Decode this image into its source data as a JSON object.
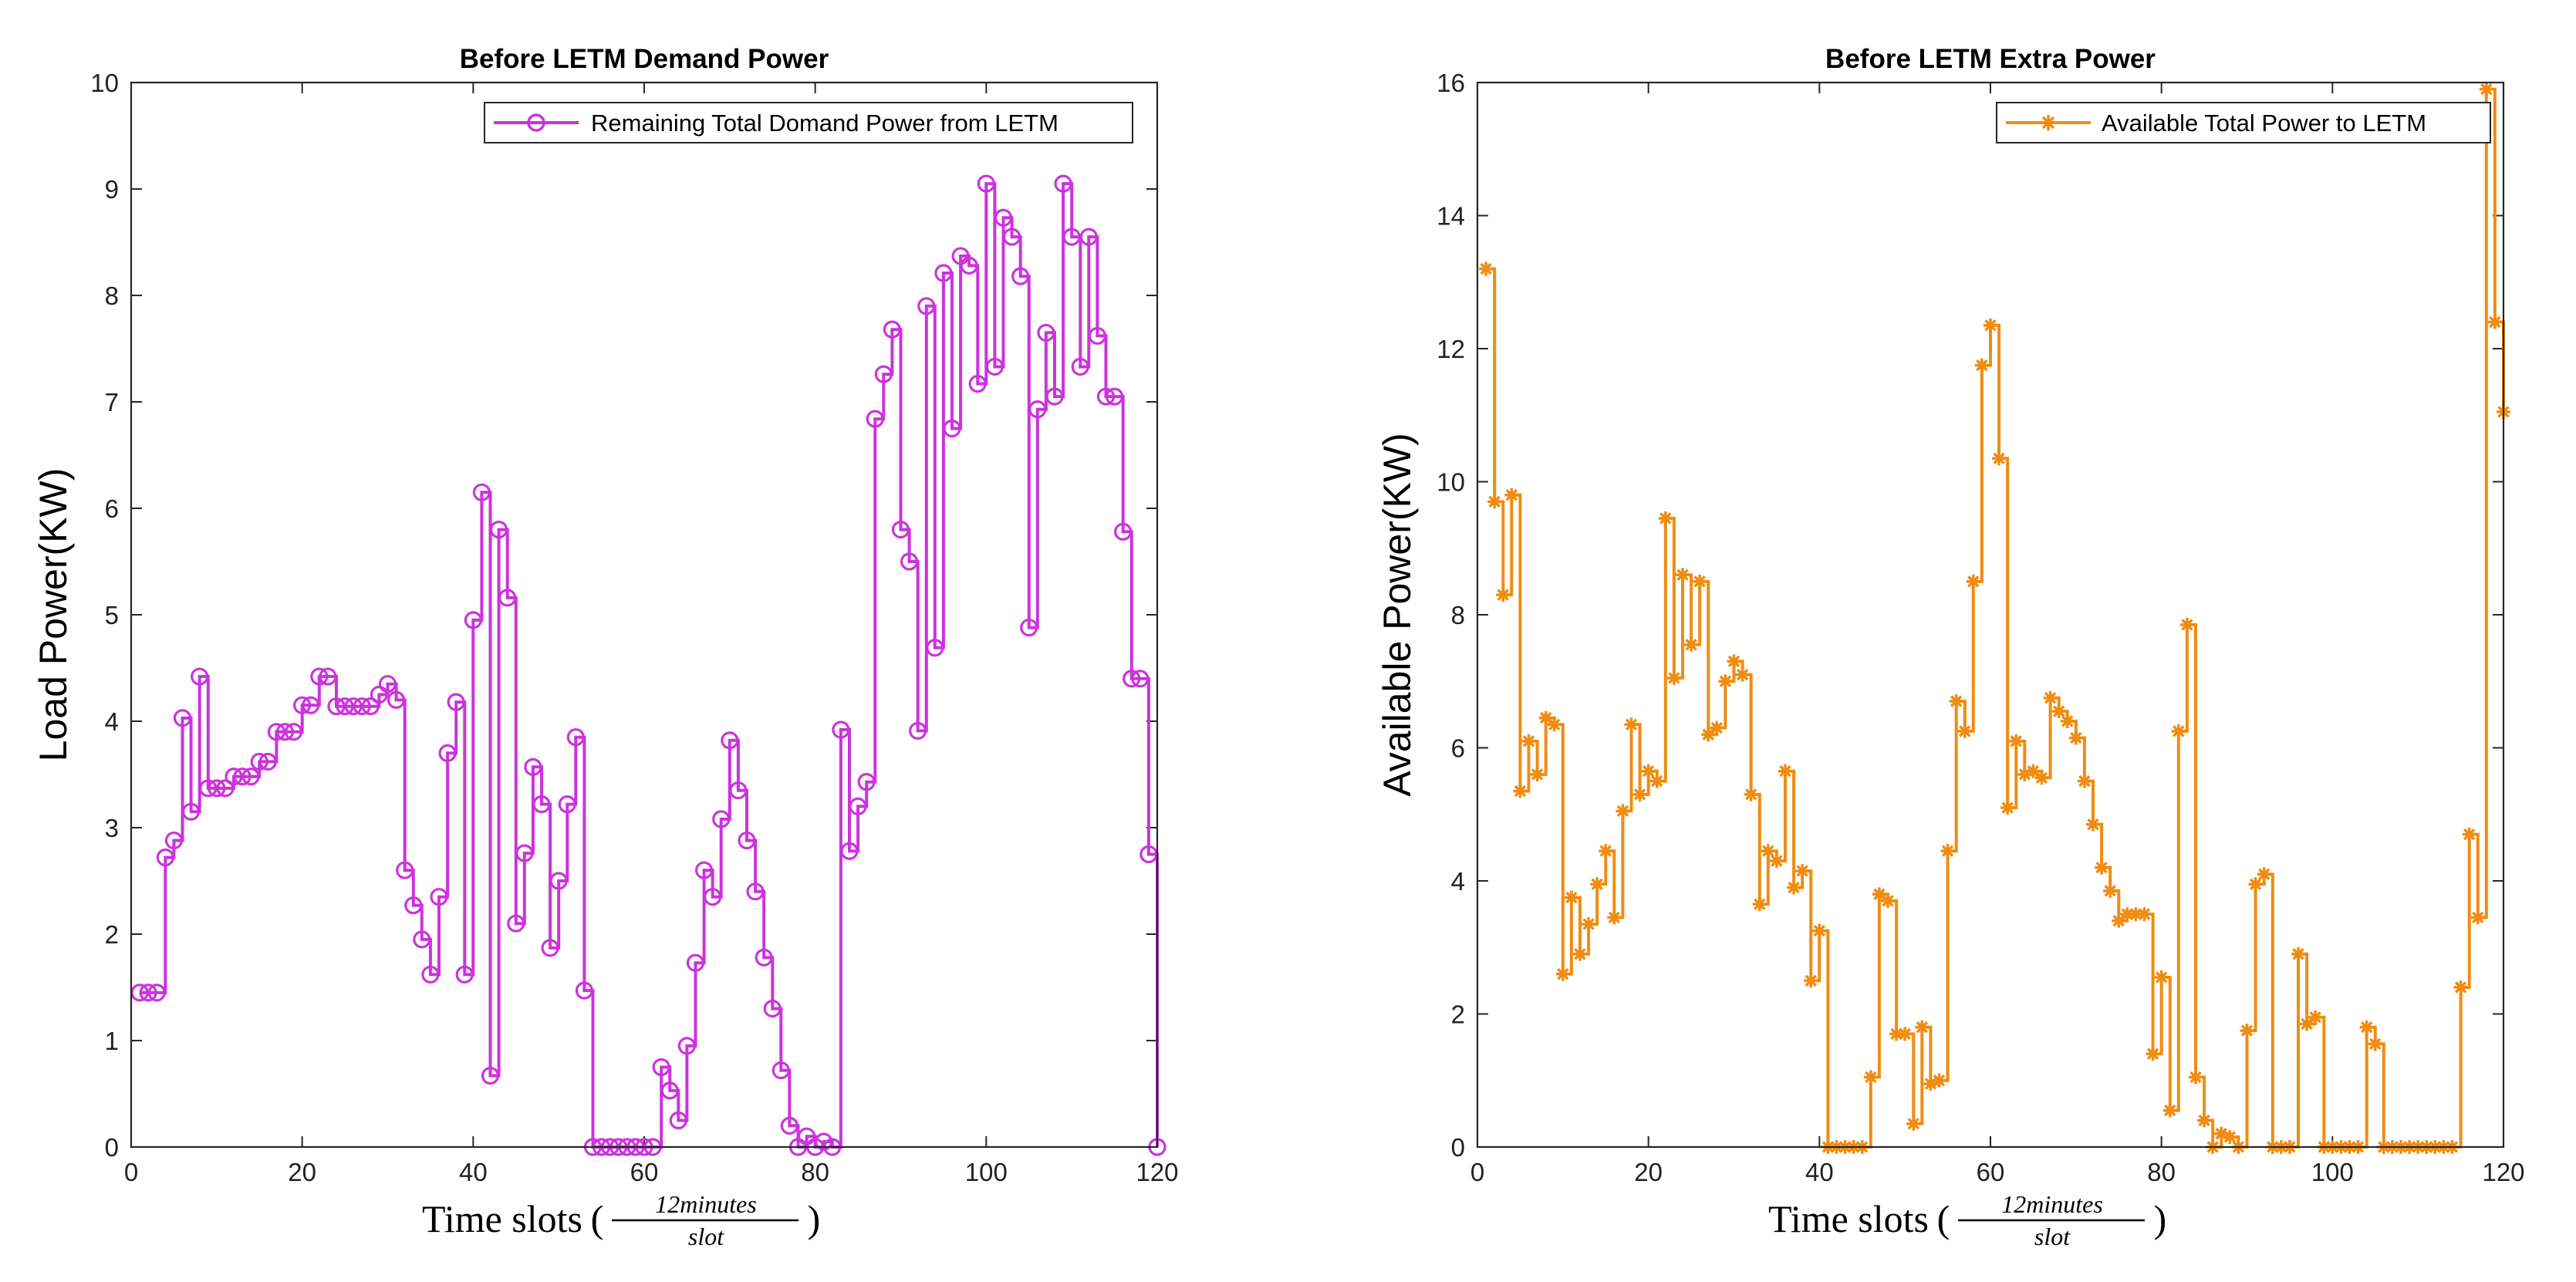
{
  "chart_data": [
    {
      "type": "line",
      "style": "stairs",
      "marker": "circle",
      "color": "#cc33dd",
      "title": "Before LETM Demand Power",
      "xlabel": "Time slots",
      "xlabel_frac_num": "12minutes",
      "xlabel_frac_den": "slot",
      "ylabel": "Load Power(KW)",
      "xlim": [
        0,
        120
      ],
      "ylim": [
        0,
        10
      ],
      "xticks": [
        0,
        20,
        40,
        60,
        80,
        100,
        120
      ],
      "yticks": [
        0,
        1,
        2,
        3,
        4,
        5,
        6,
        7,
        8,
        9,
        10
      ],
      "legend": "Remaining Total Domand Power from LETM",
      "legend_position": "top-right",
      "series": [
        {
          "name": "Remaining Total Domand Power from LETM",
          "x": [
            1,
            2,
            3,
            4,
            5,
            6,
            7,
            8,
            9,
            10,
            11,
            12,
            13,
            14,
            15,
            16,
            17,
            18,
            19,
            20,
            21,
            22,
            23,
            24,
            25,
            26,
            27,
            28,
            29,
            30,
            31,
            32,
            33,
            34,
            35,
            36,
            37,
            38,
            39,
            40,
            41,
            42,
            43,
            44,
            45,
            46,
            47,
            48,
            49,
            50,
            51,
            52,
            53,
            54,
            55,
            56,
            57,
            58,
            59,
            60,
            61,
            62,
            63,
            64,
            65,
            66,
            67,
            68,
            69,
            70,
            71,
            72,
            73,
            74,
            75,
            76,
            77,
            78,
            79,
            80,
            81,
            82,
            83,
            84,
            85,
            86,
            87,
            88,
            89,
            90,
            91,
            92,
            93,
            94,
            95,
            96,
            97,
            98,
            99,
            100,
            101,
            102,
            103,
            104,
            105,
            106,
            107,
            108,
            109,
            110,
            111,
            112,
            113,
            114,
            115,
            116,
            117,
            118,
            119,
            120
          ],
          "values": [
            1.45,
            1.45,
            1.45,
            2.72,
            2.88,
            4.03,
            3.15,
            4.42,
            3.37,
            3.37,
            3.37,
            3.48,
            3.48,
            3.48,
            3.62,
            3.62,
            3.9,
            3.9,
            3.9,
            4.15,
            4.15,
            4.42,
            4.42,
            4.14,
            4.14,
            4.14,
            4.14,
            4.14,
            4.25,
            4.35,
            4.2,
            2.6,
            2.27,
            1.95,
            1.62,
            2.35,
            3.7,
            4.18,
            1.62,
            4.95,
            6.15,
            0.67,
            5.8,
            5.16,
            2.1,
            2.76,
            3.57,
            3.22,
            1.87,
            2.5,
            3.22,
            3.85,
            1.47,
            0.0,
            0.0,
            0.0,
            0.0,
            0.0,
            0.0,
            0.0,
            0.0,
            0.75,
            0.53,
            0.25,
            0.95,
            1.73,
            2.6,
            2.35,
            3.08,
            3.82,
            3.35,
            2.88,
            2.4,
            1.78,
            1.3,
            0.72,
            0.2,
            0.0,
            0.1,
            0.0,
            0.05,
            0.0,
            3.92,
            2.78,
            3.2,
            3.43,
            6.84,
            7.26,
            7.68,
            5.8,
            5.5,
            3.91,
            7.9,
            4.69,
            8.21,
            6.75,
            8.37,
            8.28,
            7.17,
            9.05,
            7.33,
            8.73,
            8.55,
            8.18,
            4.88,
            6.93,
            7.65,
            7.05,
            9.05,
            8.55,
            7.33,
            8.55,
            7.62,
            7.05,
            7.05,
            5.78,
            4.4,
            4.4,
            2.75,
            0.0
          ]
        }
      ]
    },
    {
      "type": "line",
      "style": "stairs",
      "marker": "asterisk",
      "color": "#f08c12",
      "title": "Before LETM Extra Power",
      "xlabel": "Time slots",
      "xlabel_frac_num": "12minutes",
      "xlabel_frac_den": "slot",
      "ylabel": "Available Power(KW)",
      "xlim": [
        0,
        120
      ],
      "ylim": [
        0,
        16
      ],
      "xticks": [
        0,
        20,
        40,
        60,
        80,
        100,
        120
      ],
      "yticks": [
        0,
        2,
        4,
        6,
        8,
        10,
        12,
        14,
        16
      ],
      "legend": "Available Total Power to LETM",
      "legend_position": "top-right",
      "series": [
        {
          "name": "Available Total Power to LETM",
          "x": [
            1,
            2,
            3,
            4,
            5,
            6,
            7,
            8,
            9,
            10,
            11,
            12,
            13,
            14,
            15,
            16,
            17,
            18,
            19,
            20,
            21,
            22,
            23,
            24,
            25,
            26,
            27,
            28,
            29,
            30,
            31,
            32,
            33,
            34,
            35,
            36,
            37,
            38,
            39,
            40,
            41,
            42,
            43,
            44,
            45,
            46,
            47,
            48,
            49,
            50,
            51,
            52,
            53,
            54,
            55,
            56,
            57,
            58,
            59,
            60,
            61,
            62,
            63,
            64,
            65,
            66,
            67,
            68,
            69,
            70,
            71,
            72,
            73,
            74,
            75,
            76,
            77,
            78,
            79,
            80,
            81,
            82,
            83,
            84,
            85,
            86,
            87,
            88,
            89,
            90,
            91,
            92,
            93,
            94,
            95,
            96,
            97,
            98,
            99,
            100,
            101,
            102,
            103,
            104,
            105,
            106,
            107,
            108,
            109,
            110,
            111,
            112,
            113,
            114,
            115,
            116,
            117,
            118,
            119,
            120
          ],
          "values": [
            13.2,
            9.7,
            8.3,
            9.8,
            5.35,
            6.1,
            5.6,
            6.45,
            6.35,
            2.6,
            3.75,
            2.9,
            3.35,
            3.95,
            4.45,
            3.45,
            5.05,
            6.35,
            5.3,
            5.65,
            5.5,
            9.45,
            7.05,
            8.6,
            7.55,
            8.5,
            6.2,
            6.3,
            7.0,
            7.3,
            7.1,
            5.3,
            3.65,
            4.45,
            4.3,
            5.65,
            3.9,
            4.15,
            2.5,
            3.25,
            0.0,
            0.0,
            0.0,
            0.0,
            0.0,
            1.05,
            3.8,
            3.7,
            1.7,
            1.7,
            0.35,
            1.8,
            0.95,
            1.0,
            4.45,
            6.7,
            6.25,
            8.5,
            11.75,
            12.35,
            10.35,
            5.1,
            6.1,
            5.6,
            5.65,
            5.55,
            6.75,
            6.55,
            6.4,
            6.15,
            5.5,
            4.85,
            4.2,
            3.85,
            3.4,
            3.5,
            3.5,
            3.5,
            1.4,
            2.55,
            0.55,
            6.25,
            7.85,
            1.05,
            0.4,
            0.0,
            0.2,
            0.15,
            0.0,
            1.75,
            3.95,
            4.1,
            0.0,
            0.0,
            0.0,
            2.9,
            1.85,
            1.95,
            0.0,
            0.0,
            0.0,
            0.0,
            0.0,
            1.8,
            1.55,
            0.0,
            0.0,
            0.0,
            0.0,
            0.0,
            0.0,
            0.0,
            0.0,
            0.0,
            2.4,
            4.7,
            3.45,
            15.9,
            12.4,
            11.05
          ]
        }
      ]
    }
  ]
}
